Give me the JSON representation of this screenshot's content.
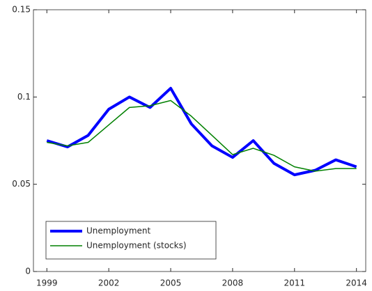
{
  "chart_data": {
    "type": "line",
    "x": [
      1999,
      2000,
      2001,
      2002,
      2003,
      2004,
      2005,
      2006,
      2007,
      2008,
      2009,
      2010,
      2011,
      2012,
      2013,
      2014
    ],
    "series": [
      {
        "name": "Unemployment",
        "color": "#0000ff",
        "values": [
          0.075,
          0.0714,
          0.078,
          0.093,
          0.1,
          0.094,
          0.105,
          0.0846,
          0.072,
          0.0654,
          0.075,
          0.062,
          0.0554,
          0.058,
          0.064,
          0.06
        ]
      },
      {
        "name": "Unemployment (stocks)",
        "color": "#008000",
        "values": [
          0.074,
          0.072,
          0.074,
          0.084,
          0.094,
          0.095,
          0.098,
          0.089,
          0.078,
          0.067,
          0.0706,
          0.0666,
          0.06,
          0.0575,
          0.059,
          0.059
        ]
      }
    ],
    "xlim": [
      1998.35,
      2014.45
    ],
    "xticks": [
      1999,
      2002,
      2005,
      2008,
      2011,
      2014
    ],
    "ylim": [
      0,
      0.15
    ],
    "yticks": [
      0,
      0.05,
      0.1,
      0.15
    ],
    "legend": "lower left"
  }
}
